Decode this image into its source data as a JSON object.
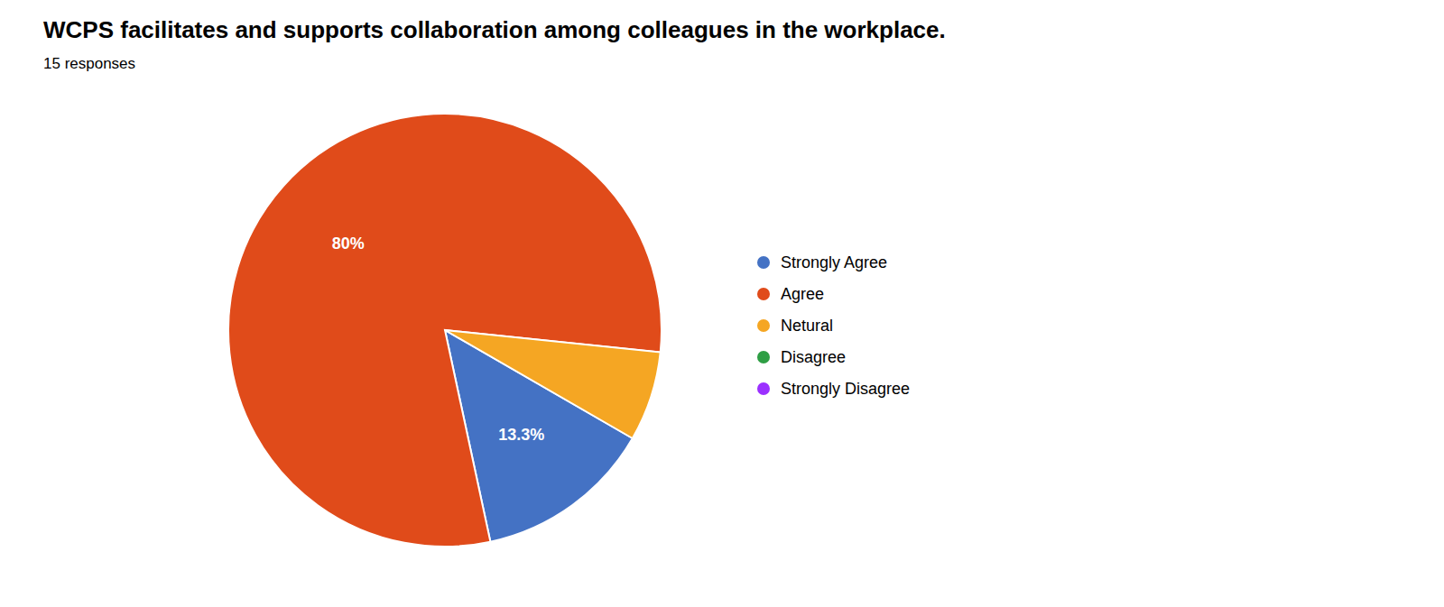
{
  "chart_data": {
    "type": "pie",
    "title": "WCPS facilitates and supports collaboration among colleagues in the workplace.",
    "subtitle": "15 responses",
    "categories": [
      "Strongly Agree",
      "Agree",
      "Netural",
      "Disagree",
      "Strongly Disagree"
    ],
    "values": [
      13.3,
      80.0,
      6.7,
      0.0,
      0.0
    ],
    "value_labels": [
      "13.3%",
      "80%",
      null,
      null,
      null
    ],
    "colors": [
      "#4472C4",
      "#E04B1A",
      "#F5A623",
      "#2E9E44",
      "#9B30FF"
    ],
    "data_labels": true,
    "legend": "right"
  }
}
